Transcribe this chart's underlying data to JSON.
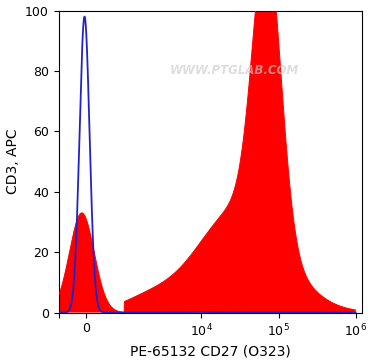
{
  "xlabel": "PE-65132 CD27 (O323)",
  "ylabel": "CD3, APC",
  "ylim": [
    0,
    100
  ],
  "yticks": [
    0,
    20,
    40,
    60,
    80,
    100
  ],
  "red_color": "#FF0000",
  "blue_color": "#2222CC",
  "background_color": "#FFFFFF",
  "watermark_text": "WWW.PTGLAB.COM",
  "watermark_color": "#CCCCCC",
  "watermark_alpha": 0.65,
  "label_fontsize": 10,
  "tick_fontsize": 9,
  "linthresh": 1000,
  "linscale": 0.45
}
